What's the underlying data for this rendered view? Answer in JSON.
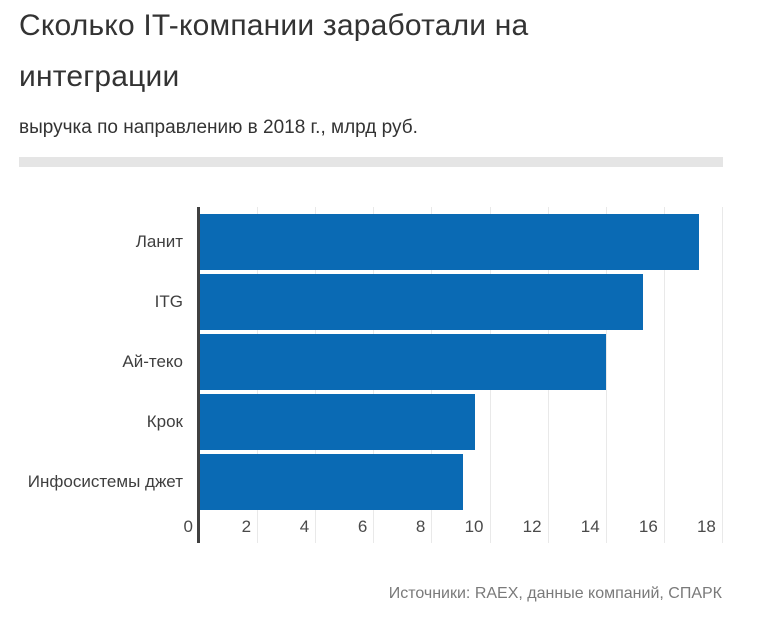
{
  "header": {
    "title": "Сколько IT-компании заработали на интеграции",
    "subtitle": "выручка по направлению в 2018 г., млрд руб."
  },
  "chart_data": {
    "type": "bar",
    "orientation": "horizontal",
    "title": "Сколько IT-компании заработали на интеграции",
    "subtitle": "выручка по направлению в 2018 г., млрд руб.",
    "categories": [
      "Ланит",
      "ITG",
      "Ай-теко",
      "Крок",
      "Инфосистемы джет"
    ],
    "values": [
      17.2,
      15.3,
      14,
      9.5,
      9.1
    ],
    "unit": "млрд руб.",
    "x_ticks": [
      0,
      2,
      4,
      6,
      8,
      10,
      12,
      14,
      16,
      18
    ],
    "xlim": [
      0,
      18
    ],
    "grid": true,
    "legend": "none",
    "bar_color": "#0a6ab4",
    "axis_line_color": "#404040",
    "gridline_color": "#e9e9e9"
  },
  "footer": {
    "source": "Источники: RAEX, данные компаний, СПАРК"
  }
}
